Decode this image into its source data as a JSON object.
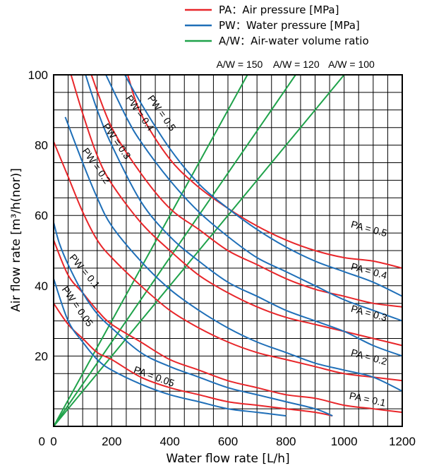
{
  "chart_data": {
    "type": "line",
    "xlabel": "Water flow rate  [L/h]",
    "ylabel": "Air flow rate  [m³/h(nor)]",
    "xlim": [
      0,
      1200
    ],
    "ylim": [
      0,
      100
    ],
    "x_ticks": [
      0,
      200,
      400,
      600,
      800,
      1000,
      1200
    ],
    "y_ticks": [
      20,
      40,
      60,
      80,
      100
    ],
    "grid": true,
    "legend": {
      "position": "top-right",
      "entries": [
        {
          "label": "PA：Air pressure [MPa]",
          "color": "#e8262a"
        },
        {
          "label": "PW：Water pressure [MPa]",
          "color": "#1f6fb8"
        },
        {
          "label": "A/W：Air-water volume ratio",
          "color": "#1fa24a"
        }
      ]
    },
    "colors": {
      "pa": "#e8262a",
      "pw": "#1f6fb8",
      "aw": "#1fa24a"
    },
    "aw_series": [
      {
        "name": "A/W = 150",
        "points": [
          [
            0,
            0
          ],
          [
            667,
            100
          ]
        ]
      },
      {
        "name": "A/W = 120",
        "points": [
          [
            0,
            0
          ],
          [
            833,
            100
          ]
        ]
      },
      {
        "name": "A/W = 100",
        "points": [
          [
            0,
            0
          ],
          [
            1000,
            100
          ]
        ]
      }
    ],
    "pa_series": [
      {
        "name": "PA = 0.05",
        "points": [
          [
            0,
            35
          ],
          [
            50,
            29
          ],
          [
            100,
            25
          ],
          [
            150,
            21
          ],
          [
            200,
            19
          ],
          [
            300,
            14
          ],
          [
            400,
            11
          ],
          [
            500,
            9
          ],
          [
            600,
            7
          ],
          [
            700,
            6
          ],
          [
            800,
            5
          ],
          [
            900,
            4
          ],
          [
            960,
            3
          ]
        ]
      },
      {
        "name": "PA = 0.1",
        "points": [
          [
            0,
            53
          ],
          [
            50,
            43
          ],
          [
            100,
            38
          ],
          [
            150,
            33
          ],
          [
            200,
            29
          ],
          [
            300,
            24
          ],
          [
            400,
            19
          ],
          [
            500,
            16
          ],
          [
            600,
            13
          ],
          [
            700,
            11
          ],
          [
            800,
            9
          ],
          [
            900,
            8
          ],
          [
            1000,
            6
          ],
          [
            1100,
            5
          ],
          [
            1200,
            4
          ]
        ]
      },
      {
        "name": "PA = 0.2",
        "points": [
          [
            0,
            81
          ],
          [
            50,
            71
          ],
          [
            100,
            61
          ],
          [
            150,
            53
          ],
          [
            200,
            48
          ],
          [
            300,
            40
          ],
          [
            400,
            33
          ],
          [
            500,
            28
          ],
          [
            600,
            24
          ],
          [
            700,
            21
          ],
          [
            800,
            19
          ],
          [
            900,
            17
          ],
          [
            1000,
            15
          ],
          [
            1100,
            14
          ],
          [
            1200,
            13
          ]
        ]
      },
      {
        "name": "PA = 0.3",
        "points": [
          [
            60,
            100
          ],
          [
            100,
            89
          ],
          [
            150,
            77
          ],
          [
            200,
            69
          ],
          [
            300,
            58
          ],
          [
            400,
            50
          ],
          [
            500,
            43
          ],
          [
            600,
            38
          ],
          [
            700,
            34
          ],
          [
            800,
            31
          ],
          [
            900,
            29
          ],
          [
            1000,
            27
          ],
          [
            1100,
            25
          ],
          [
            1200,
            23
          ]
        ]
      },
      {
        "name": "PA = 0.4",
        "points": [
          [
            130,
            100
          ],
          [
            200,
            85
          ],
          [
            300,
            72
          ],
          [
            400,
            62
          ],
          [
            500,
            56
          ],
          [
            600,
            50
          ],
          [
            700,
            46
          ],
          [
            800,
            42
          ],
          [
            900,
            39
          ],
          [
            1000,
            37
          ],
          [
            1100,
            35
          ],
          [
            1200,
            34
          ]
        ]
      },
      {
        "name": "PA = 0.5",
        "points": [
          [
            255,
            100
          ],
          [
            300,
            89
          ],
          [
            400,
            76
          ],
          [
            500,
            68
          ],
          [
            600,
            62
          ],
          [
            700,
            57
          ],
          [
            800,
            53
          ],
          [
            900,
            50
          ],
          [
            1000,
            48
          ],
          [
            1100,
            47
          ],
          [
            1200,
            45
          ]
        ]
      }
    ],
    "pw_series": [
      {
        "name": "PW = 0.05",
        "points": [
          [
            0,
            42
          ],
          [
            50,
            30
          ],
          [
            100,
            24
          ],
          [
            150,
            19
          ],
          [
            200,
            16
          ],
          [
            300,
            12
          ],
          [
            400,
            9
          ],
          [
            500,
            7
          ],
          [
            600,
            5
          ],
          [
            700,
            4
          ],
          [
            800,
            3
          ]
        ]
      },
      {
        "name": "PW = 0.1",
        "points": [
          [
            0,
            58
          ],
          [
            20,
            52
          ],
          [
            50,
            46
          ],
          [
            100,
            38
          ],
          [
            150,
            32
          ],
          [
            200,
            28
          ],
          [
            300,
            21
          ],
          [
            400,
            17
          ],
          [
            500,
            14
          ],
          [
            600,
            11
          ],
          [
            700,
            9
          ],
          [
            800,
            7
          ],
          [
            900,
            5
          ],
          [
            960,
            3
          ]
        ]
      },
      {
        "name": "PW = 0.2",
        "points": [
          [
            40,
            88
          ],
          [
            100,
            75
          ],
          [
            150,
            65
          ],
          [
            200,
            57
          ],
          [
            300,
            47
          ],
          [
            400,
            39
          ],
          [
            500,
            33
          ],
          [
            600,
            28
          ],
          [
            700,
            24
          ],
          [
            800,
            21
          ],
          [
            900,
            18
          ],
          [
            1000,
            16
          ],
          [
            1100,
            14
          ],
          [
            1200,
            10
          ]
        ]
      },
      {
        "name": "PW = 0.3",
        "points": [
          [
            110,
            100
          ],
          [
            150,
            90
          ],
          [
            200,
            80
          ],
          [
            300,
            64
          ],
          [
            400,
            54
          ],
          [
            500,
            47
          ],
          [
            600,
            41
          ],
          [
            700,
            37
          ],
          [
            800,
            33
          ],
          [
            900,
            30
          ],
          [
            1000,
            27
          ],
          [
            1100,
            23
          ],
          [
            1200,
            20
          ]
        ]
      },
      {
        "name": "PW = 0.4",
        "points": [
          [
            180,
            100
          ],
          [
            250,
            88
          ],
          [
            300,
            81
          ],
          [
            400,
            70
          ],
          [
            500,
            61
          ],
          [
            600,
            54
          ],
          [
            700,
            48
          ],
          [
            800,
            44
          ],
          [
            900,
            40
          ],
          [
            1000,
            36
          ],
          [
            1100,
            33
          ],
          [
            1200,
            30
          ]
        ]
      },
      {
        "name": "PW = 0.5",
        "points": [
          [
            245,
            100
          ],
          [
            300,
            92
          ],
          [
            400,
            79
          ],
          [
            500,
            69
          ],
          [
            600,
            62
          ],
          [
            700,
            56
          ],
          [
            800,
            51
          ],
          [
            900,
            47
          ],
          [
            1000,
            44
          ],
          [
            1100,
            41
          ],
          [
            1200,
            37
          ]
        ]
      }
    ],
    "curve_labels": [
      {
        "text": "PA = 0.5",
        "x": 1085,
        "y": 56,
        "angle": 15
      },
      {
        "text": "PA = 0.4",
        "x": 1085,
        "y": 44,
        "angle": 15
      },
      {
        "text": "PA = 0.3",
        "x": 1085,
        "y": 32,
        "angle": 15
      },
      {
        "text": "PA = 0.2",
        "x": 1085,
        "y": 19.5,
        "angle": 15
      },
      {
        "text": "PA = 0.1",
        "x": 1080,
        "y": 7.5,
        "angle": 12
      },
      {
        "text": "PA = 0.05",
        "x": 345,
        "y": 14,
        "angle": 20
      },
      {
        "text": "PW = 0.5",
        "x": 370,
        "y": 89,
        "angle": 55
      },
      {
        "text": "PW = 0.4",
        "x": 295,
        "y": 89,
        "angle": 55
      },
      {
        "text": "PW = 0.3",
        "x": 215,
        "y": 81,
        "angle": 55
      },
      {
        "text": "PW = 0.2",
        "x": 145,
        "y": 74,
        "angle": 55
      },
      {
        "text": "PW = 0.1",
        "x": 105,
        "y": 44,
        "angle": 50
      },
      {
        "text": "PW = 0.05",
        "x": 80,
        "y": 34,
        "angle": 55
      }
    ],
    "aw_labels": [
      {
        "text": "A/W = 150",
        "x": 640
      },
      {
        "text": "A/W = 120",
        "x": 835
      },
      {
        "text": "A/W = 100",
        "x": 1025
      }
    ]
  }
}
